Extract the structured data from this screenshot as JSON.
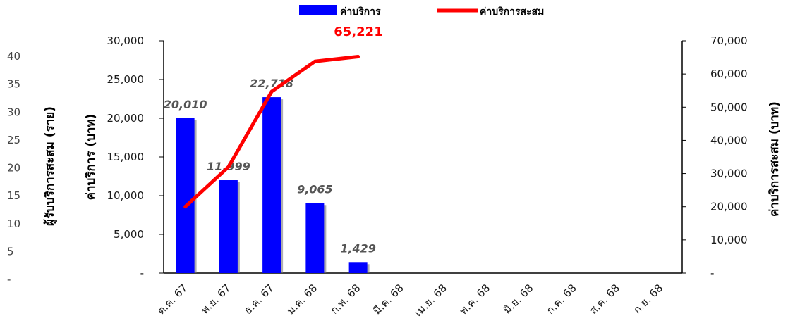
{
  "colors": {
    "bar": "#0000ff",
    "line": "#ff0000",
    "axis": "#000000"
  },
  "chart_data": {
    "type": "bar",
    "categories": [
      "ต.ค. 67",
      "พ.ย. 67",
      "ธ.ค. 67",
      "ม.ค. 68",
      "ก.พ. 68",
      "มี.ค. 68",
      "เม.ย. 68",
      "พ.ค. 68",
      "มิ.ย. 68",
      "ก.ค. 68",
      "ส.ค. 68",
      "ก.ย. 68"
    ],
    "series": [
      {
        "name": "ค่าบริการ",
        "type": "bar",
        "axis": "primary",
        "values": [
          20010,
          11999,
          22718,
          9065,
          1429,
          null,
          null,
          null,
          null,
          null,
          null,
          null
        ],
        "labels": [
          "20,010",
          "11,999",
          "22,718",
          "9,065",
          "1,429"
        ]
      },
      {
        "name": "ค่าบริการสะสม",
        "type": "line",
        "axis": "secondary",
        "values": [
          20010,
          32009,
          54727,
          63792,
          65221,
          null,
          null,
          null,
          null,
          null,
          null,
          null
        ]
      }
    ],
    "total_label": "65,221",
    "primary_axis": {
      "title": "ค่าบริการ (บาท)",
      "ylim": [
        0,
        30000
      ],
      "ticks": [
        "-",
        "5,000",
        "10,000",
        "15,000",
        "20,000",
        "25,000",
        "30,000"
      ]
    },
    "secondary_axis": {
      "title": "ค่าบริการสะสม (บาท)",
      "ylim": [
        0,
        70000
      ],
      "ticks": [
        "-",
        "10,000",
        "20,000",
        "30,000",
        "40,000",
        "50,000",
        "60,000",
        "70,000"
      ]
    },
    "tertiary_axis": {
      "title": "ผู้รับบริการสะสม (ราย)",
      "ylim": [
        0,
        40
      ],
      "ticks": [
        "-",
        "5",
        "10",
        "15",
        "20",
        "25",
        "30",
        "35",
        "40"
      ]
    },
    "legend": {
      "position": "top",
      "entries": [
        "ค่าบริการ",
        "ค่าบริการสะสม"
      ]
    },
    "grid": false
  }
}
